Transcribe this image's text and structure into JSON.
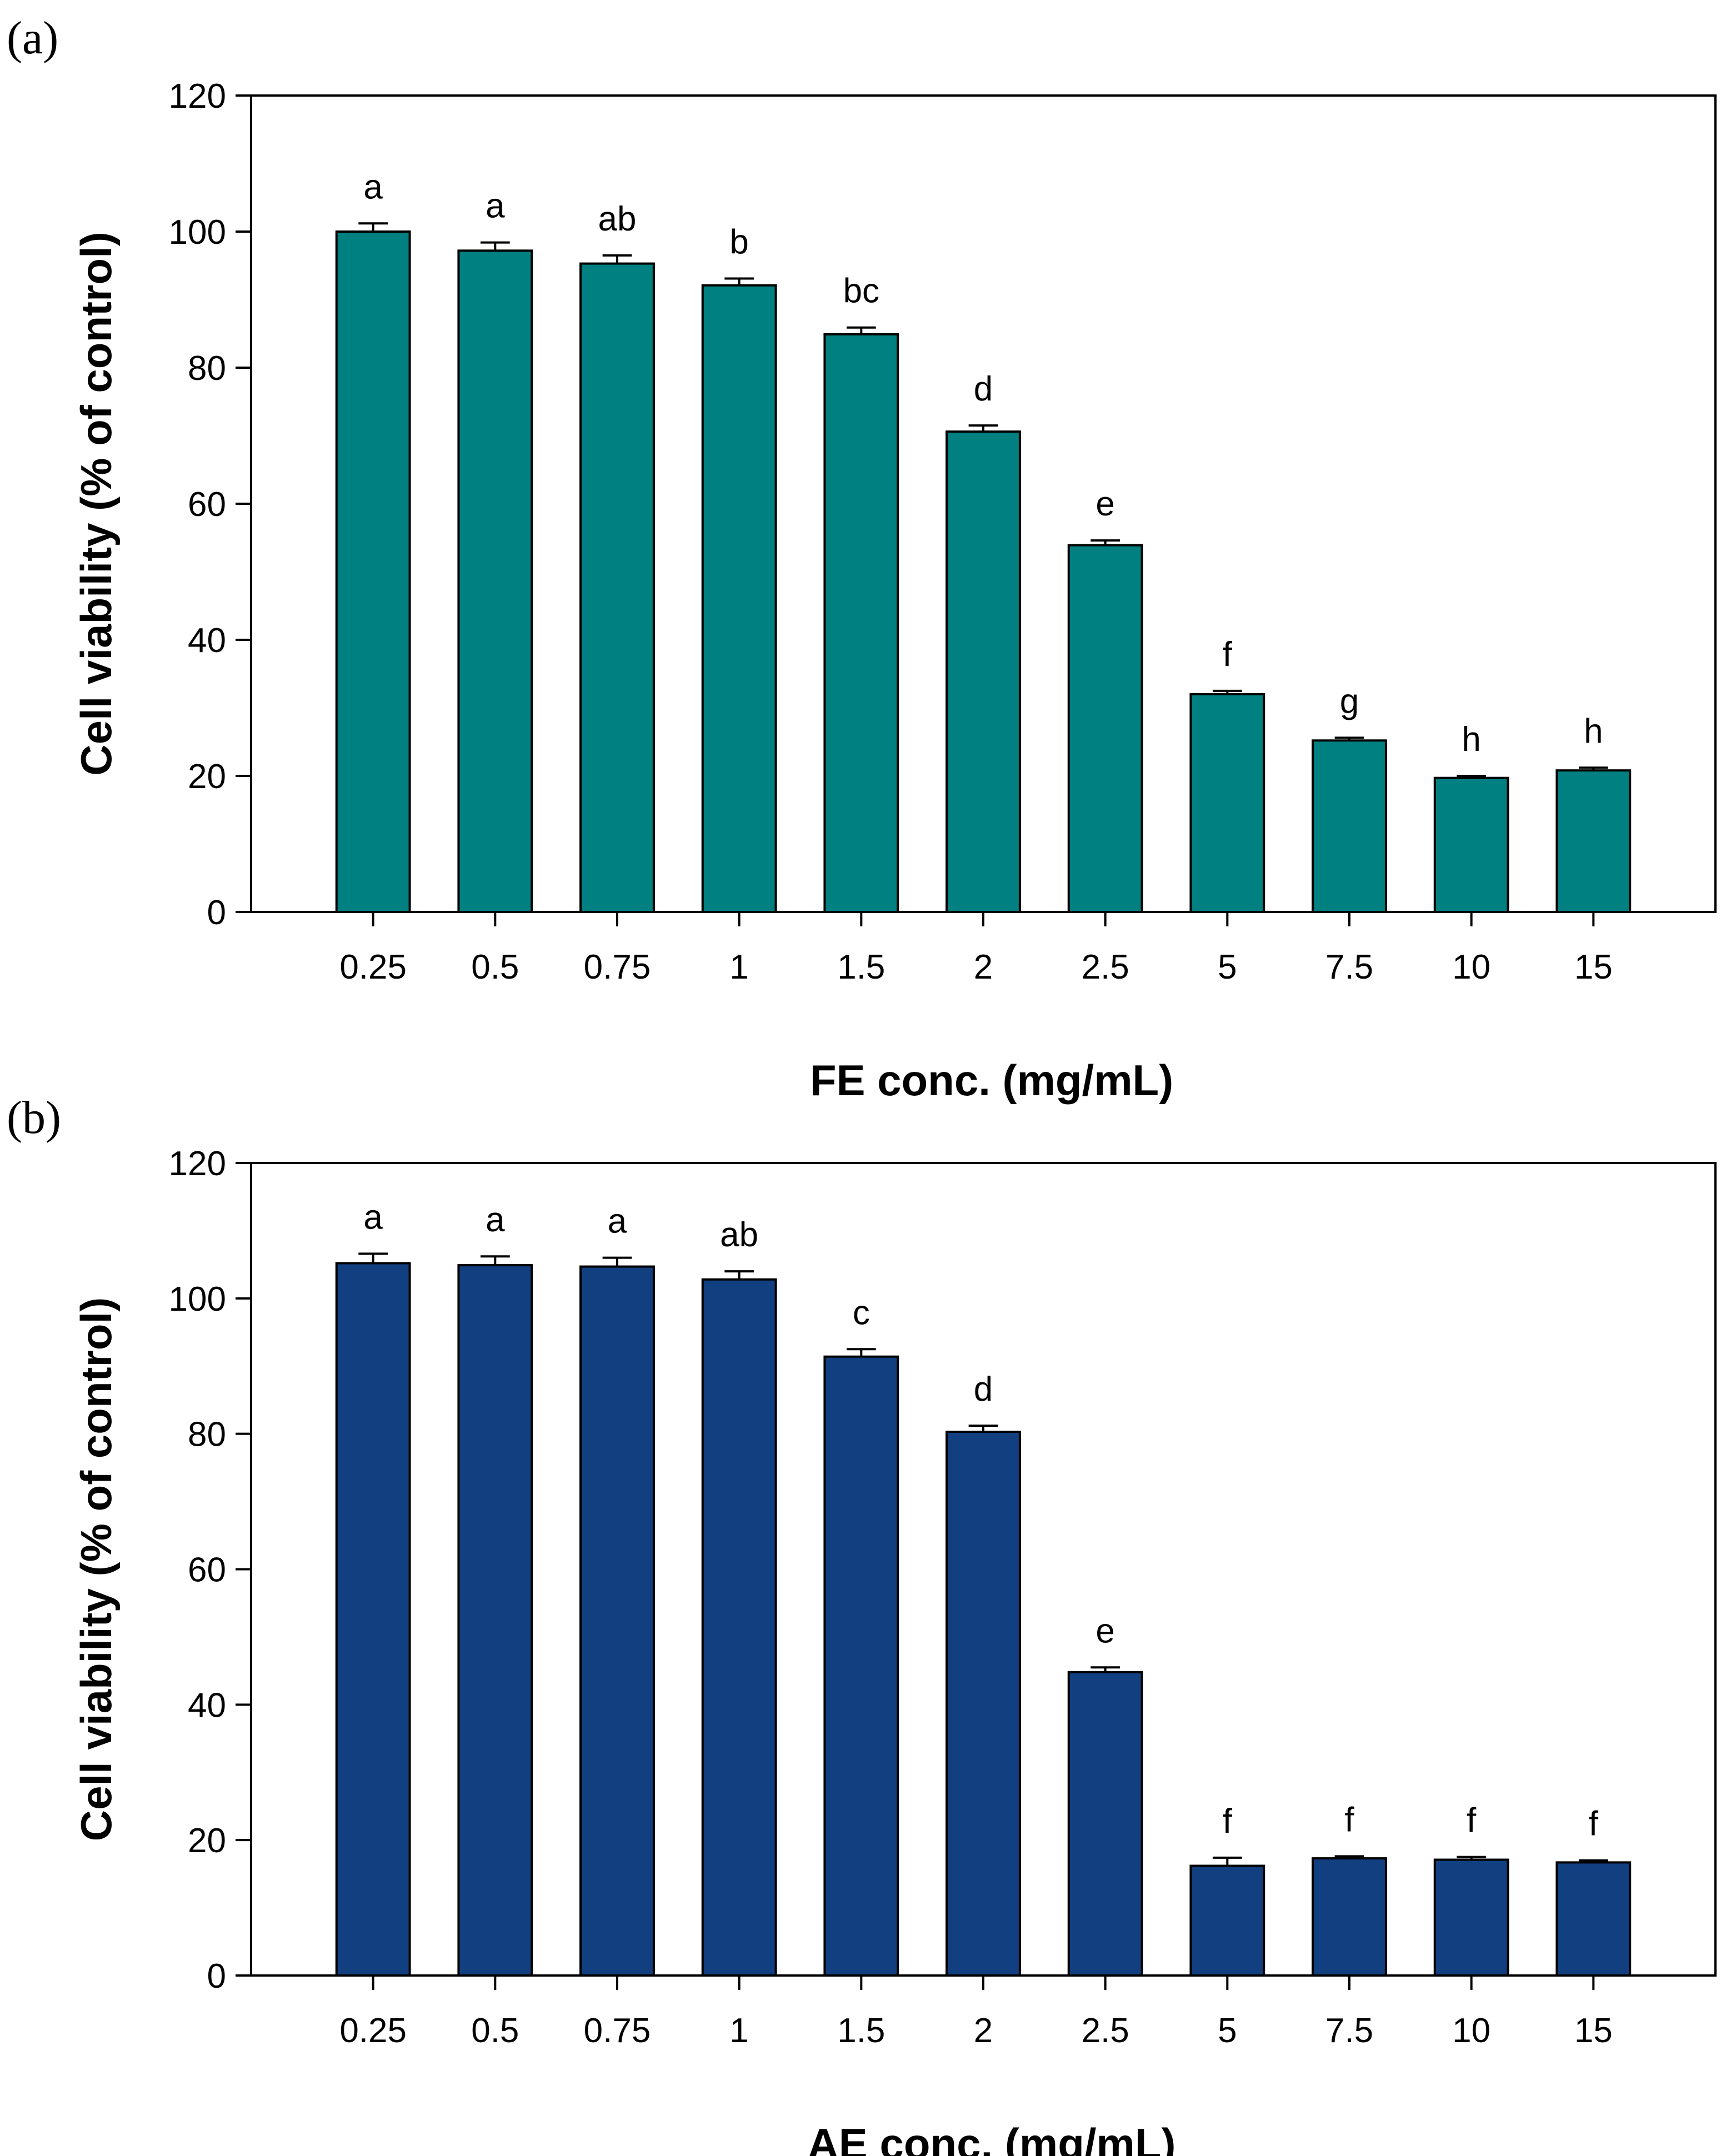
{
  "chart_data": [
    {
      "panel_label": "(a)",
      "type": "bar",
      "xlabel": "FE conc. (mg/mL)",
      "ylabel": "Cell viability (% of control)",
      "ylim": [
        0,
        120
      ],
      "yticks": [
        0,
        20,
        40,
        60,
        80,
        100,
        120
      ],
      "categories": [
        "0.25",
        "0.5",
        "0.75",
        "1",
        "1.5",
        "2",
        "2.5",
        "5",
        "7.5",
        "10",
        "15"
      ],
      "values": [
        100.0,
        97.2,
        95.3,
        92.1,
        84.9,
        70.6,
        53.9,
        32.0,
        25.2,
        19.7,
        20.8
      ],
      "errors": [
        1.2,
        1.2,
        1.2,
        1.0,
        1.0,
        0.9,
        0.7,
        0.5,
        0.4,
        0.3,
        0.4
      ],
      "significance": [
        "a",
        "a",
        "ab",
        "b",
        "bc",
        "d",
        "e",
        "f",
        "g",
        "h",
        "h"
      ],
      "color": "#008080"
    },
    {
      "panel_label": "(b)",
      "type": "bar",
      "xlabel": "AE conc. (mg/mL)",
      "ylabel": "Cell viability (% of control)",
      "ylim": [
        0,
        120
      ],
      "yticks": [
        0,
        20,
        40,
        60,
        80,
        100,
        120
      ],
      "categories": [
        "0.25",
        "0.5",
        "0.75",
        "1",
        "1.5",
        "2",
        "2.5",
        "5",
        "7.5",
        "10",
        "15"
      ],
      "values": [
        105.2,
        104.9,
        104.7,
        102.8,
        91.4,
        80.3,
        44.8,
        16.2,
        17.3,
        17.1,
        16.7
      ],
      "errors": [
        1.4,
        1.3,
        1.3,
        1.2,
        1.1,
        0.9,
        0.7,
        1.2,
        0.3,
        0.4,
        0.3
      ],
      "significance": [
        "a",
        "a",
        "a",
        "ab",
        "c",
        "d",
        "e",
        "f",
        "f",
        "f",
        "f"
      ],
      "color": "#123f80"
    }
  ]
}
